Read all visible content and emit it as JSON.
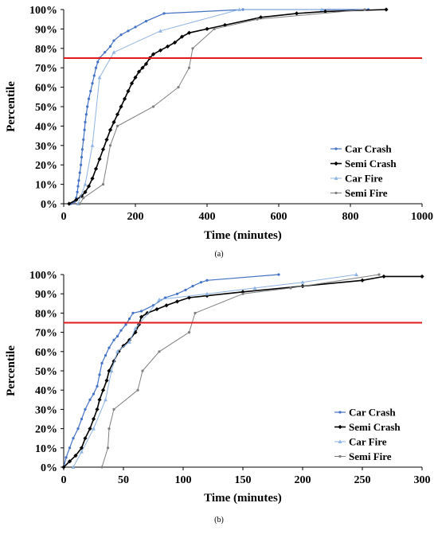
{
  "chart_data": [
    {
      "id": "a",
      "type": "line",
      "caption": "(a)",
      "xlabel": "Time (minutes)",
      "ylabel": "Percentile",
      "xlim": [
        0,
        1000
      ],
      "ylim": [
        0,
        100
      ],
      "x_ticks": [
        0,
        200,
        400,
        600,
        800,
        1000
      ],
      "y_ticks": [
        0,
        10,
        20,
        30,
        40,
        50,
        60,
        70,
        80,
        90,
        100
      ],
      "reference_line": {
        "y": 75,
        "color": "#e31a1c"
      },
      "legend_position": "lower-right",
      "series": [
        {
          "name": "Car Crash",
          "color": "#4472c4",
          "marker": "circle",
          "line_width": 1.2,
          "points": [
            [
              20,
              0
            ],
            [
              30,
              1
            ],
            [
              35,
              3
            ],
            [
              38,
              6
            ],
            [
              40,
              9
            ],
            [
              42,
              12
            ],
            [
              45,
              16
            ],
            [
              48,
              20
            ],
            [
              50,
              24
            ],
            [
              52,
              28
            ],
            [
              55,
              33
            ],
            [
              58,
              38
            ],
            [
              60,
              42
            ],
            [
              63,
              46
            ],
            [
              66,
              50
            ],
            [
              70,
              54
            ],
            [
              75,
              58
            ],
            [
              80,
              62
            ],
            [
              85,
              66
            ],
            [
              90,
              70
            ],
            [
              95,
              73
            ],
            [
              100,
              75
            ],
            [
              115,
              78
            ],
            [
              130,
              81
            ],
            [
              140,
              84
            ],
            [
              160,
              87
            ],
            [
              180,
              89
            ],
            [
              200,
              91
            ],
            [
              230,
              94
            ],
            [
              280,
              98
            ],
            [
              500,
              100
            ],
            [
              850,
              100
            ]
          ]
        },
        {
          "name": "Semi Crash",
          "color": "#000000",
          "marker": "diamond",
          "line_width": 1.6,
          "points": [
            [
              15,
              0
            ],
            [
              35,
              2
            ],
            [
              50,
              4
            ],
            [
              60,
              6
            ],
            [
              70,
              9
            ],
            [
              80,
              13
            ],
            [
              90,
              18
            ],
            [
              100,
              23
            ],
            [
              110,
              28
            ],
            [
              120,
              33
            ],
            [
              130,
              38
            ],
            [
              140,
              42
            ],
            [
              150,
              46
            ],
            [
              160,
              50
            ],
            [
              170,
              54
            ],
            [
              180,
              58
            ],
            [
              190,
              62
            ],
            [
              200,
              65
            ],
            [
              210,
              68
            ],
            [
              220,
              70
            ],
            [
              230,
              72
            ],
            [
              240,
              75
            ],
            [
              250,
              77
            ],
            [
              270,
              79
            ],
            [
              290,
              81
            ],
            [
              310,
              83
            ],
            [
              330,
              86
            ],
            [
              350,
              88
            ],
            [
              400,
              90
            ],
            [
              450,
              92
            ],
            [
              550,
              96
            ],
            [
              650,
              98
            ],
            [
              730,
              99
            ],
            [
              900,
              100
            ]
          ]
        },
        {
          "name": "Car Fire",
          "color": "#8eb4e3",
          "marker": "triangle",
          "line_width": 1.0,
          "points": [
            [
              40,
              0
            ],
            [
              60,
              10
            ],
            [
              80,
              30
            ],
            [
              100,
              65
            ],
            [
              140,
              78
            ],
            [
              270,
              89
            ],
            [
              490,
              100
            ],
            [
              720,
              100
            ]
          ]
        },
        {
          "name": "Semi Fire",
          "color": "#7f7f7f",
          "marker": "circle",
          "line_width": 1.0,
          "points": [
            [
              45,
              0
            ],
            [
              55,
              3
            ],
            [
              110,
              10
            ],
            [
              130,
              30
            ],
            [
              150,
              40
            ],
            [
              250,
              50
            ],
            [
              320,
              60
            ],
            [
              350,
              70
            ],
            [
              360,
              80
            ],
            [
              420,
              90
            ],
            [
              540,
              95
            ],
            [
              840,
              100
            ]
          ]
        }
      ]
    },
    {
      "id": "b",
      "type": "line",
      "caption": "(b)",
      "xlabel": "Time (minutes)",
      "ylabel": "Percentile",
      "xlim": [
        0,
        300
      ],
      "ylim": [
        0,
        100
      ],
      "x_ticks": [
        0,
        50,
        100,
        150,
        200,
        250,
        300
      ],
      "y_ticks": [
        0,
        10,
        20,
        30,
        40,
        50,
        60,
        70,
        80,
        90,
        100
      ],
      "reference_line": {
        "y": 75,
        "color": "#e31a1c"
      },
      "legend_position": "lower-right",
      "series": [
        {
          "name": "Car Crash",
          "color": "#4472c4",
          "marker": "circle",
          "line_width": 1.2,
          "points": [
            [
              0,
              0
            ],
            [
              2,
              5
            ],
            [
              5,
              10
            ],
            [
              8,
              15
            ],
            [
              12,
              20
            ],
            [
              15,
              25
            ],
            [
              18,
              30
            ],
            [
              22,
              35
            ],
            [
              25,
              38
            ],
            [
              28,
              42
            ],
            [
              30,
              48
            ],
            [
              32,
              54
            ],
            [
              35,
              58
            ],
            [
              38,
              62
            ],
            [
              42,
              66
            ],
            [
              45,
              68
            ],
            [
              48,
              71
            ],
            [
              52,
              74
            ],
            [
              55,
              77
            ],
            [
              58,
              80
            ],
            [
              65,
              81
            ],
            [
              75,
              84
            ],
            [
              85,
              88
            ],
            [
              95,
              90
            ],
            [
              102,
              92
            ],
            [
              108,
              94
            ],
            [
              115,
              96
            ],
            [
              120,
              97
            ],
            [
              180,
              100
            ]
          ]
        },
        {
          "name": "Semi Crash",
          "color": "#000000",
          "marker": "diamond",
          "line_width": 1.6,
          "points": [
            [
              0,
              0
            ],
            [
              5,
              3
            ],
            [
              10,
              6
            ],
            [
              15,
              10
            ],
            [
              18,
              15
            ],
            [
              22,
              20
            ],
            [
              25,
              25
            ],
            [
              28,
              30
            ],
            [
              30,
              35
            ],
            [
              33,
              40
            ],
            [
              36,
              45
            ],
            [
              38,
              50
            ],
            [
              42,
              55
            ],
            [
              46,
              60
            ],
            [
              50,
              63
            ],
            [
              55,
              66
            ],
            [
              60,
              70
            ],
            [
              63,
              74
            ],
            [
              65,
              78
            ],
            [
              70,
              80
            ],
            [
              78,
              82
            ],
            [
              86,
              84
            ],
            [
              95,
              86
            ],
            [
              105,
              88
            ],
            [
              120,
              89
            ],
            [
              150,
              91
            ],
            [
              200,
              94
            ],
            [
              250,
              97
            ],
            [
              268,
              99
            ],
            [
              300,
              99
            ]
          ]
        },
        {
          "name": "Car Fire",
          "color": "#8eb4e3",
          "marker": "triangle",
          "line_width": 1.0,
          "points": [
            [
              8,
              0
            ],
            [
              15,
              8
            ],
            [
              25,
              20
            ],
            [
              35,
              35
            ],
            [
              40,
              50
            ],
            [
              45,
              60
            ],
            [
              55,
              65
            ],
            [
              60,
              72
            ],
            [
              80,
              87
            ],
            [
              120,
              90
            ],
            [
              160,
              93
            ],
            [
              200,
              96
            ],
            [
              245,
              100
            ]
          ]
        },
        {
          "name": "Semi Fire",
          "color": "#7f7f7f",
          "marker": "circle",
          "line_width": 1.0,
          "points": [
            [
              32,
              0
            ],
            [
              37,
              10
            ],
            [
              38,
              20
            ],
            [
              42,
              30
            ],
            [
              62,
              40
            ],
            [
              66,
              50
            ],
            [
              80,
              60
            ],
            [
              105,
              70
            ],
            [
              110,
              80
            ],
            [
              150,
              90
            ],
            [
              190,
              93
            ],
            [
              264,
              100
            ]
          ]
        }
      ]
    }
  ]
}
